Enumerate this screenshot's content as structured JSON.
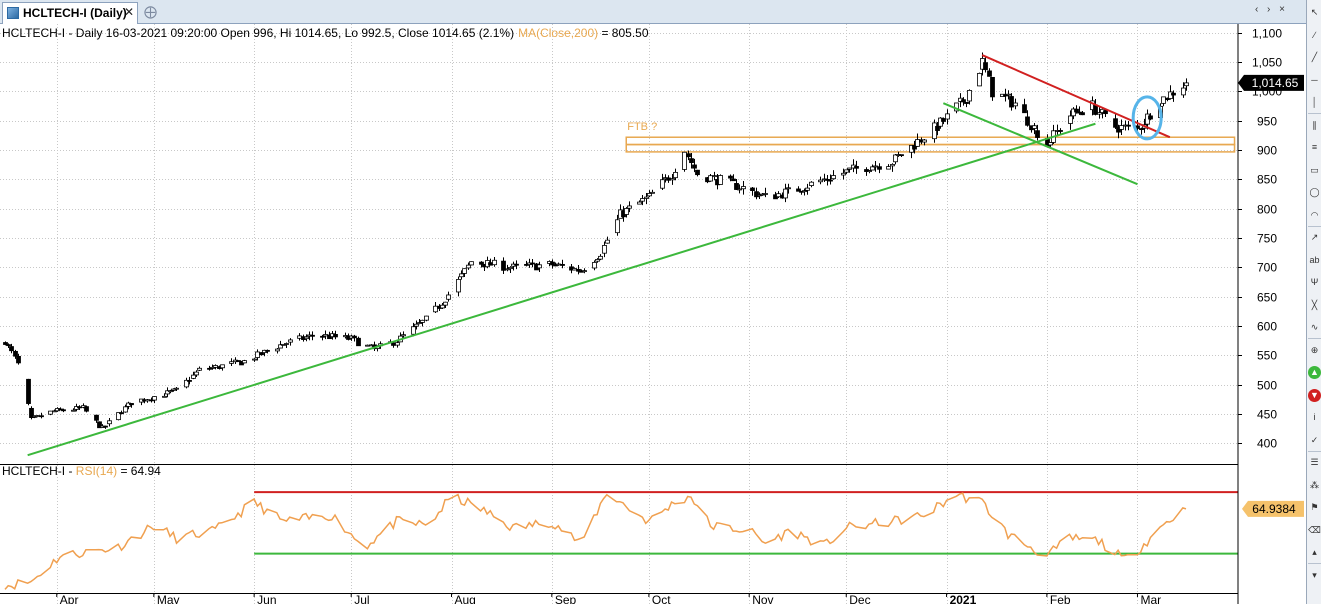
{
  "window": {
    "tab_title": "HCLTECH-I (Daily)",
    "tab_close_icon": "close-icon",
    "new_tab_icon": "new-tab-icon",
    "window_controls": "‹ › ×"
  },
  "header": {
    "symbol_prefix": "HCLTECH-I - ",
    "info": "Daily 16-03-2021 09:20:00 Open 996, Hi 1014.65, Lo 992.5, Close 1014.65 (2.1%)",
    "ma_label": "MA(Close,200)",
    "ma_value": " = 805.50"
  },
  "rsi_header": {
    "symbol_prefix": "HCLTECH-I - ",
    "rsi_label": "RSI(14)",
    "rsi_value": " = 64.94"
  },
  "colors": {
    "up_candle": "#ffffff",
    "down_candle": "#000000",
    "trendline_support": "#3cb83c",
    "trendline_resistance": "#d12020",
    "zone": "#e8a850",
    "ma_label": "#e8a850",
    "rsi_line": "#f0a050",
    "rsi_upper": "#d12020",
    "rsi_lower": "#3cb83c",
    "circle": "#56b4e9",
    "grid": "#c8c8c8",
    "price_tag": "#000000",
    "rsi_tag": "#f5c26b"
  },
  "chart_data": [
    {
      "type": "candlestick",
      "title": "",
      "ylim": [
        365,
        1115
      ],
      "y_ticks": [
        "400",
        "450",
        "500",
        "550",
        "600",
        "650",
        "700",
        "750",
        "800",
        "850",
        "900",
        "950",
        "1,000",
        "1,050",
        "1,100"
      ],
      "x_labels": [
        "Apr",
        "May",
        "Jun",
        "Jul",
        "Aug",
        "Sep",
        "Oct",
        "Nov",
        "Dec",
        "2021",
        "Feb",
        "Mar"
      ],
      "grid": "both",
      "last_price_label": "1,014.65",
      "last_price": 1014.65,
      "annotation": "FTB ?",
      "anchors": [
        {
          "date": "2020-03-16",
          "price": 575
        },
        {
          "date": "2020-03-20",
          "price": 535
        },
        {
          "date": "2020-03-24",
          "price": 440
        },
        {
          "date": "2020-03-31",
          "price": 455
        },
        {
          "date": "2020-04-09",
          "price": 460
        },
        {
          "date": "2020-04-15",
          "price": 425
        },
        {
          "date": "2020-04-24",
          "price": 470
        },
        {
          "date": "2020-05-08",
          "price": 490
        },
        {
          "date": "2020-05-15",
          "price": 525
        },
        {
          "date": "2020-05-20",
          "price": 530
        },
        {
          "date": "2020-05-29",
          "price": 540
        },
        {
          "date": "2020-06-10",
          "price": 570
        },
        {
          "date": "2020-06-20",
          "price": 585
        },
        {
          "date": "2020-07-01",
          "price": 578
        },
        {
          "date": "2020-07-08",
          "price": 560
        },
        {
          "date": "2020-07-15",
          "price": 575
        },
        {
          "date": "2020-07-25",
          "price": 615
        },
        {
          "date": "2020-08-01",
          "price": 660
        },
        {
          "date": "2020-08-07",
          "price": 710
        },
        {
          "date": "2020-08-20",
          "price": 700
        },
        {
          "date": "2020-09-01",
          "price": 705
        },
        {
          "date": "2020-09-10",
          "price": 695
        },
        {
          "date": "2020-09-16",
          "price": 725
        },
        {
          "date": "2020-09-22",
          "price": 790
        },
        {
          "date": "2020-10-01",
          "price": 820
        },
        {
          "date": "2020-10-08",
          "price": 860
        },
        {
          "date": "2020-10-12",
          "price": 900
        },
        {
          "date": "2020-10-16",
          "price": 860
        },
        {
          "date": "2020-10-28",
          "price": 840
        },
        {
          "date": "2020-11-06",
          "price": 820
        },
        {
          "date": "2020-11-14",
          "price": 830
        },
        {
          "date": "2020-11-24",
          "price": 850
        },
        {
          "date": "2020-12-05",
          "price": 870
        },
        {
          "date": "2020-12-15",
          "price": 880
        },
        {
          "date": "2020-12-22",
          "price": 910
        },
        {
          "date": "2020-12-31",
          "price": 950
        },
        {
          "date": "2021-01-07",
          "price": 990
        },
        {
          "date": "2021-01-12",
          "price": 1050
        },
        {
          "date": "2021-01-15",
          "price": 1000
        },
        {
          "date": "2021-01-22",
          "price": 980
        },
        {
          "date": "2021-02-01",
          "price": 910
        },
        {
          "date": "2021-02-08",
          "price": 960
        },
        {
          "date": "2021-02-15",
          "price": 975
        },
        {
          "date": "2021-02-22",
          "price": 940
        },
        {
          "date": "2021-03-01",
          "price": 935
        },
        {
          "date": "2021-03-08",
          "price": 985
        },
        {
          "date": "2021-03-16",
          "price": 1014.65
        }
      ],
      "trendlines": [
        {
          "kind": "support",
          "from": {
            "date": "2020-03-23",
            "price": 380
          },
          "to": {
            "date": "2021-02-16",
            "price": 945
          }
        },
        {
          "kind": "resistance",
          "from": {
            "date": "2021-01-12",
            "price": 1062
          },
          "to": {
            "date": "2021-03-11",
            "price": 922
          }
        },
        {
          "kind": "support",
          "from": {
            "date": "2020-12-31",
            "price": 980
          },
          "to": {
            "date": "2021-03-01",
            "price": 842
          }
        }
      ],
      "zone": {
        "from_date": "2020-09-24",
        "to_date": "2021-03-31",
        "low": 897,
        "high": 922
      },
      "circle": {
        "date": "2021-03-04",
        "price": 955
      }
    },
    {
      "type": "line",
      "title": "",
      "series": [
        {
          "name": "RSI(14)",
          "last_value_label": "64.9384",
          "last_value": 64.9384
        }
      ],
      "ylim": [
        0,
        100
      ],
      "levels": {
        "upper": 78,
        "lower": 30
      },
      "anchors": [
        {
          "date": "2020-03-16",
          "rsi": 5
        },
        {
          "date": "2020-03-24",
          "rsi": 8
        },
        {
          "date": "2020-04-02",
          "rsi": 28
        },
        {
          "date": "2020-04-20",
          "rsi": 35
        },
        {
          "date": "2020-05-01",
          "rsi": 52
        },
        {
          "date": "2020-05-08",
          "rsi": 42
        },
        {
          "date": "2020-05-20",
          "rsi": 48
        },
        {
          "date": "2020-06-01",
          "rsi": 70
        },
        {
          "date": "2020-06-10",
          "rsi": 55
        },
        {
          "date": "2020-06-25",
          "rsi": 60
        },
        {
          "date": "2020-07-05",
          "rsi": 35
        },
        {
          "date": "2020-07-15",
          "rsi": 55
        },
        {
          "date": "2020-07-25",
          "rsi": 52
        },
        {
          "date": "2020-08-01",
          "rsi": 75
        },
        {
          "date": "2020-08-10",
          "rsi": 65
        },
        {
          "date": "2020-08-20",
          "rsi": 50
        },
        {
          "date": "2020-09-01",
          "rsi": 55
        },
        {
          "date": "2020-09-10",
          "rsi": 38
        },
        {
          "date": "2020-09-18",
          "rsi": 78
        },
        {
          "date": "2020-09-25",
          "rsi": 65
        },
        {
          "date": "2020-10-01",
          "rsi": 55
        },
        {
          "date": "2020-10-09",
          "rsi": 70
        },
        {
          "date": "2020-10-14",
          "rsi": 75
        },
        {
          "date": "2020-10-20",
          "rsi": 52
        },
        {
          "date": "2020-11-01",
          "rsi": 48
        },
        {
          "date": "2020-11-06",
          "rsi": 38
        },
        {
          "date": "2020-11-14",
          "rsi": 48
        },
        {
          "date": "2020-11-24",
          "rsi": 36
        },
        {
          "date": "2020-12-01",
          "rsi": 50
        },
        {
          "date": "2020-12-15",
          "rsi": 55
        },
        {
          "date": "2020-12-25",
          "rsi": 60
        },
        {
          "date": "2021-01-04",
          "rsi": 76
        },
        {
          "date": "2021-01-12",
          "rsi": 70
        },
        {
          "date": "2021-01-20",
          "rsi": 45
        },
        {
          "date": "2021-02-01",
          "rsi": 28
        },
        {
          "date": "2021-02-08",
          "rsi": 42
        },
        {
          "date": "2021-02-17",
          "rsi": 40
        },
        {
          "date": "2021-02-25",
          "rsi": 25
        },
        {
          "date": "2021-03-02",
          "rsi": 35
        },
        {
          "date": "2021-03-10",
          "rsi": 55
        },
        {
          "date": "2021-03-16",
          "rsi": 64.94
        }
      ]
    }
  ],
  "sidebar": {
    "buttons": [
      {
        "name": "cursor-icon",
        "glyph": "↖"
      },
      {
        "name": "line-tool-icon",
        "glyph": "∕"
      },
      {
        "name": "ray-tool-icon",
        "glyph": "╱"
      },
      {
        "name": "hline-tool-icon",
        "glyph": "─"
      },
      {
        "name": "vline-tool-icon",
        "glyph": "│"
      },
      {
        "name": "channel-tool-icon",
        "glyph": "∥"
      },
      {
        "name": "fib-tool-icon",
        "glyph": "≡"
      },
      {
        "name": "rect-tool-icon",
        "glyph": "▭"
      },
      {
        "name": "ellipse-tool-icon",
        "glyph": "◯"
      },
      {
        "name": "arc-tool-icon",
        "glyph": "◠"
      },
      {
        "name": "arrow-tool-icon",
        "glyph": "↗"
      },
      {
        "name": "text-tool-icon",
        "glyph": "ab"
      },
      {
        "name": "pitchfork-tool-icon",
        "glyph": "Ψ"
      },
      {
        "name": "gann-tool-icon",
        "glyph": "╳"
      },
      {
        "name": "cycle-tool-icon",
        "glyph": "∿"
      },
      {
        "name": "zoom-tool-icon",
        "glyph": "⊕"
      },
      {
        "name": "buy-arrow-icon",
        "glyph": "▲"
      },
      {
        "name": "sell-arrow-icon",
        "glyph": "▼"
      },
      {
        "name": "info-icon",
        "glyph": "i"
      },
      {
        "name": "tick-tool-icon",
        "glyph": "✓"
      },
      {
        "name": "layers-icon",
        "glyph": "☰"
      },
      {
        "name": "pattern-tool-icon",
        "glyph": "⁂"
      },
      {
        "name": "label-tool-icon",
        "glyph": "⚑"
      },
      {
        "name": "eraser-icon",
        "glyph": "⌫"
      },
      {
        "name": "scroll-up-icon",
        "glyph": "▴"
      },
      {
        "name": "scroll-down-icon",
        "glyph": "▾"
      }
    ]
  }
}
